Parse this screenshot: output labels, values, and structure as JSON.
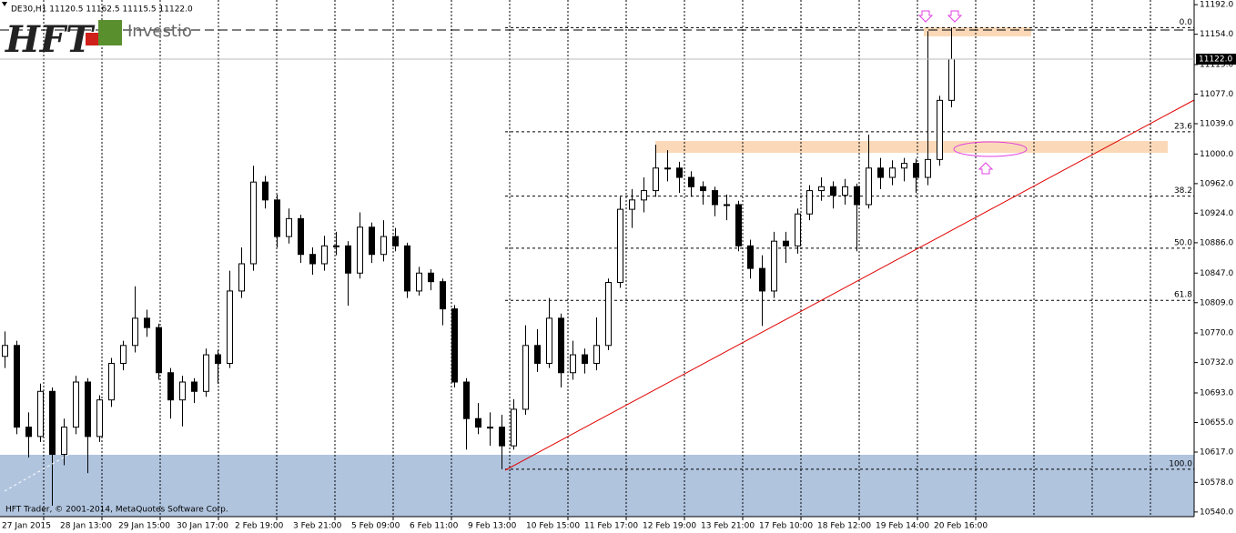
{
  "chart_data": {
    "type": "candlestick",
    "title": "DE30,H1  11120.5 11162.5 11115.5 11122.0",
    "footer": "HFT Trader, © 2001-2014, MetaQuotes Software Corp.",
    "logo": {
      "brand": "HFT",
      "name": "Investio"
    },
    "up_color": "#ffffff",
    "down_color": "#000000",
    "wick_color": "#000000",
    "ylim": [
      10534,
      11198
    ],
    "yticks": [
      {
        "value": 11192,
        "label": "11192.0"
      },
      {
        "value": 11154,
        "label": "11154.0"
      },
      {
        "value": 11115,
        "label": "11115.0"
      },
      {
        "value": 11077,
        "label": "11077.0"
      },
      {
        "value": 11039,
        "label": "11039.0"
      },
      {
        "value": 11000,
        "label": "11000.0"
      },
      {
        "value": 10962,
        "label": "10962.0"
      },
      {
        "value": 10924,
        "label": "10924.0"
      },
      {
        "value": 10886,
        "label": "10886.0"
      },
      {
        "value": 10847,
        "label": "10847.0"
      },
      {
        "value": 10809,
        "label": "10809.0"
      },
      {
        "value": 10770,
        "label": "10770.0"
      },
      {
        "value": 10732,
        "label": "10732.0"
      },
      {
        "value": 10693,
        "label": "10693.0"
      },
      {
        "value": 10655,
        "label": "10655.0"
      },
      {
        "value": 10617,
        "label": "10617.0"
      },
      {
        "value": 10578,
        "label": "10578.0"
      },
      {
        "value": 10540,
        "label": "10540.0"
      }
    ],
    "x_labels": [
      "27 Jan 2015",
      "28 Jan 13:00",
      "29 Jan 15:00",
      "30 Jan 17:00",
      "2 Feb 19:00",
      "3 Feb 21:00",
      "5 Feb 09:00",
      "6 Feb 11:00",
      "9 Feb 13:00",
      "10 Feb 15:00",
      "11 Feb 17:00",
      "12 Feb 19:00",
      "13 Feb 21:00",
      "17 Feb 10:00",
      "18 Feb 12:00",
      "19 Feb 14:00",
      "20 Feb 16:00"
    ],
    "bid_line": {
      "value": 11122,
      "label": "11122.0"
    },
    "fib_levels": [
      {
        "value": 11162.5,
        "label": "0.0"
      },
      {
        "value": 11028.7,
        "label": "23.6"
      },
      {
        "value": 10945.9,
        "label": "38.2"
      },
      {
        "value": 10879,
        "label": "50.0"
      },
      {
        "value": 10812,
        "label": "61.8"
      },
      {
        "value": 10595,
        "label": "100.0"
      }
    ],
    "candles": [
      [
        10740,
        10772,
        10725,
        10754
      ],
      [
        10754,
        10760,
        10640,
        10649
      ],
      [
        10649,
        10668,
        10610,
        10637
      ],
      [
        10637,
        10705,
        10630,
        10695
      ],
      [
        10695,
        10700,
        10548,
        10614
      ],
      [
        10614,
        10660,
        10600,
        10649
      ],
      [
        10649,
        10715,
        10640,
        10707
      ],
      [
        10707,
        10712,
        10590,
        10637
      ],
      [
        10637,
        10690,
        10630,
        10684
      ],
      [
        10684,
        10738,
        10675,
        10731
      ],
      [
        10731,
        10760,
        10722,
        10754
      ],
      [
        10754,
        10830,
        10745,
        10789
      ],
      [
        10789,
        10800,
        10765,
        10777
      ],
      [
        10777,
        10782,
        10710,
        10719
      ],
      [
        10719,
        10725,
        10660,
        10684
      ],
      [
        10684,
        10715,
        10650,
        10707
      ],
      [
        10707,
        10712,
        10680,
        10695
      ],
      [
        10695,
        10750,
        10688,
        10742
      ],
      [
        10742,
        10748,
        10705,
        10731
      ],
      [
        10731,
        10850,
        10725,
        10824
      ],
      [
        10824,
        10880,
        10815,
        10859
      ],
      [
        10859,
        10985,
        10850,
        10964
      ],
      [
        10964,
        10972,
        10930,
        10941
      ],
      [
        10941,
        10948,
        10880,
        10894
      ],
      [
        10894,
        10930,
        10885,
        10917
      ],
      [
        10917,
        10922,
        10860,
        10871
      ],
      [
        10871,
        10880,
        10845,
        10859
      ],
      [
        10859,
        10895,
        10850,
        10882
      ],
      [
        10882,
        10900,
        10870,
        10882
      ],
      [
        10882,
        10888,
        10805,
        10847
      ],
      [
        10847,
        10925,
        10840,
        10906
      ],
      [
        10906,
        10912,
        10860,
        10871
      ],
      [
        10871,
        10915,
        10862,
        10894
      ],
      [
        10894,
        10905,
        10875,
        10882
      ],
      [
        10882,
        10886,
        10815,
        10824
      ],
      [
        10824,
        10855,
        10818,
        10847
      ],
      [
        10847,
        10852,
        10825,
        10836
      ],
      [
        10836,
        10840,
        10780,
        10801
      ],
      [
        10801,
        10806,
        10700,
        10707
      ],
      [
        10707,
        10712,
        10620,
        10660
      ],
      [
        10660,
        10680,
        10640,
        10649
      ],
      [
        10649,
        10668,
        10625,
        10649
      ],
      [
        10649,
        10665,
        10595,
        10625
      ],
      [
        10625,
        10685,
        10620,
        10672
      ],
      [
        10672,
        10780,
        10665,
        10754
      ],
      [
        10754,
        10775,
        10720,
        10731
      ],
      [
        10731,
        10815,
        10725,
        10789
      ],
      [
        10789,
        10795,
        10700,
        10719
      ],
      [
        10719,
        10760,
        10710,
        10742
      ],
      [
        10742,
        10750,
        10718,
        10731
      ],
      [
        10731,
        10790,
        10722,
        10754
      ],
      [
        10754,
        10840,
        10748,
        10835
      ],
      [
        10835,
        10945,
        10828,
        10929
      ],
      [
        10929,
        10955,
        10905,
        10941
      ],
      [
        10941,
        10970,
        10925,
        10953
      ],
      [
        10953,
        11012,
        10945,
        10982
      ],
      [
        10982,
        11005,
        10965,
        10982
      ],
      [
        10982,
        10990,
        10950,
        10970
      ],
      [
        10970,
        10978,
        10945,
        10958
      ],
      [
        10958,
        10965,
        10935,
        10953
      ],
      [
        10953,
        10958,
        10920,
        10935
      ],
      [
        10935,
        10948,
        10915,
        10935
      ],
      [
        10935,
        10940,
        10875,
        10882
      ],
      [
        10882,
        10890,
        10840,
        10853
      ],
      [
        10853,
        10870,
        10779,
        10824
      ],
      [
        10824,
        10900,
        10815,
        10888
      ],
      [
        10888,
        10900,
        10860,
        10882
      ],
      [
        10882,
        10930,
        10872,
        10923
      ],
      [
        10923,
        10960,
        10915,
        10953
      ],
      [
        10953,
        10970,
        10940,
        10958
      ],
      [
        10958,
        10965,
        10930,
        10947
      ],
      [
        10947,
        10968,
        10935,
        10958
      ],
      [
        10958,
        10962,
        10875,
        10935
      ],
      [
        10935,
        11025,
        10930,
        10982
      ],
      [
        10982,
        10995,
        10955,
        10970
      ],
      [
        10970,
        10992,
        10960,
        10982
      ],
      [
        10982,
        10995,
        10965,
        10988
      ],
      [
        10988,
        10994,
        10950,
        10970
      ],
      [
        10970,
        11158,
        10960,
        10993
      ],
      [
        10993,
        11075,
        10985,
        11069
      ],
      [
        11069,
        11162.5,
        11060,
        11122
      ]
    ]
  }
}
